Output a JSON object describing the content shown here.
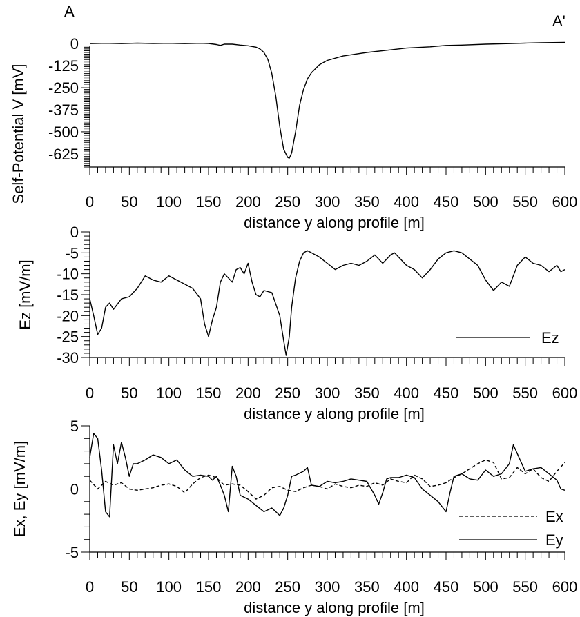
{
  "corner_labels": {
    "left": "A",
    "right": "A'"
  },
  "chart_data": [
    {
      "type": "line",
      "xlabel": "distance y along profile [m]",
      "ylabel": "Self-Potential V [mV]",
      "xlim": [
        0,
        600
      ],
      "ylim": [
        -700,
        40
      ],
      "xticks": [
        0,
        50,
        100,
        150,
        200,
        250,
        300,
        350,
        400,
        450,
        500,
        550,
        600
      ],
      "yticks": [
        0,
        -125,
        -250,
        -375,
        -500,
        -625
      ],
      "series": [
        {
          "style": "solid",
          "x": [
            0,
            20,
            40,
            60,
            80,
            100,
            120,
            140,
            150,
            160,
            165,
            170,
            180,
            190,
            200,
            210,
            215,
            220,
            225,
            230,
            235,
            240,
            245,
            250,
            252,
            255,
            260,
            265,
            270,
            275,
            280,
            290,
            300,
            320,
            350,
            380,
            400,
            430,
            450,
            470,
            500,
            530,
            550,
            570,
            600
          ],
          "y": [
            0,
            2,
            0,
            3,
            1,
            2,
            0,
            2,
            1,
            -5,
            -10,
            -3,
            -3,
            -8,
            -12,
            -20,
            -30,
            -50,
            -90,
            -170,
            -300,
            -470,
            -600,
            -645,
            -650,
            -620,
            -500,
            -350,
            -260,
            -200,
            -165,
            -120,
            -95,
            -70,
            -50,
            -35,
            -25,
            -18,
            -10,
            -8,
            -3,
            0,
            3,
            5,
            7
          ]
        }
      ]
    },
    {
      "type": "line",
      "xlabel": "distance y along profile [m]",
      "ylabel": "Ez [mV/m]",
      "xlim": [
        0,
        600
      ],
      "ylim": [
        -30,
        0
      ],
      "xticks": [
        0,
        50,
        100,
        150,
        200,
        250,
        300,
        350,
        400,
        450,
        500,
        550,
        600
      ],
      "yticks": [
        0,
        -5,
        -10,
        -15,
        -20,
        -25,
        -30
      ],
      "series": [
        {
          "name": "Ez",
          "style": "solid",
          "x": [
            0,
            5,
            10,
            15,
            20,
            25,
            30,
            40,
            50,
            60,
            70,
            80,
            90,
            100,
            110,
            120,
            130,
            140,
            145,
            150,
            155,
            160,
            165,
            170,
            175,
            180,
            185,
            190,
            195,
            200,
            205,
            210,
            215,
            220,
            230,
            240,
            245,
            248,
            252,
            255,
            260,
            265,
            270,
            275,
            280,
            290,
            300,
            310,
            320,
            330,
            340,
            350,
            360,
            370,
            380,
            385,
            390,
            400,
            410,
            420,
            430,
            440,
            450,
            460,
            470,
            480,
            490,
            500,
            510,
            520,
            530,
            540,
            550,
            560,
            570,
            580,
            590,
            595,
            600
          ],
          "y": [
            -16,
            -20,
            -24.5,
            -23,
            -18,
            -17,
            -18.5,
            -16,
            -15.5,
            -13.5,
            -10.5,
            -11.5,
            -12,
            -10.5,
            -11.5,
            -12.5,
            -13.5,
            -16,
            -22,
            -25,
            -21,
            -18,
            -12,
            -10,
            -11,
            -12,
            -9,
            -8.5,
            -10,
            -7.5,
            -12,
            -15,
            -15.5,
            -14,
            -14.5,
            -20,
            -26,
            -29.5,
            -25,
            -18,
            -11,
            -7,
            -5,
            -4.5,
            -5,
            -6,
            -7.5,
            -9,
            -8,
            -7.5,
            -8,
            -7,
            -5.5,
            -7.5,
            -5.5,
            -5,
            -6,
            -8,
            -9,
            -11,
            -9,
            -6.5,
            -5,
            -4.5,
            -5,
            -6.5,
            -8,
            -11.5,
            -14,
            -12,
            -13,
            -8,
            -6,
            -7.5,
            -8,
            -9.5,
            -8,
            -9.5,
            -9
          ]
        }
      ],
      "legend": {
        "position": "bottom-right",
        "entries": [
          "Ez"
        ]
      }
    },
    {
      "type": "line",
      "xlabel": "distance y along profile [m]",
      "ylabel": "Ex, Ey [mV/m]",
      "xlim": [
        0,
        600
      ],
      "ylim": [
        -5,
        5
      ],
      "xticks": [
        0,
        50,
        100,
        150,
        200,
        250,
        300,
        350,
        400,
        450,
        500,
        550,
        600
      ],
      "yticks": [
        5,
        0,
        -5
      ],
      "series": [
        {
          "name": "Ex",
          "style": "dashed",
          "x": [
            0,
            10,
            20,
            30,
            40,
            50,
            60,
            70,
            80,
            90,
            100,
            110,
            120,
            130,
            140,
            150,
            160,
            170,
            180,
            190,
            200,
            210,
            220,
            230,
            240,
            250,
            260,
            270,
            280,
            290,
            300,
            310,
            320,
            330,
            340,
            350,
            360,
            370,
            380,
            390,
            400,
            410,
            420,
            430,
            440,
            450,
            460,
            470,
            480,
            490,
            500,
            510,
            520,
            530,
            540,
            550,
            560,
            570,
            580,
            590,
            600
          ],
          "y": [
            0.7,
            0.0,
            0.6,
            0.3,
            0.5,
            0.0,
            -0.1,
            0.0,
            0.1,
            0.3,
            0.4,
            0.2,
            -0.3,
            0.4,
            0.9,
            1.1,
            0.9,
            0.3,
            0.4,
            0.3,
            -0.2,
            -0.8,
            -0.5,
            0.1,
            0.2,
            -0.1,
            -0.2,
            0.1,
            0.3,
            0.2,
            0.0,
            0.4,
            0.2,
            0.1,
            0.3,
            0.2,
            0.5,
            0.3,
            0.8,
            0.6,
            0.5,
            1.1,
            0.8,
            0.2,
            0.3,
            0.5,
            0.9,
            1.2,
            1.6,
            2.0,
            2.3,
            2.1,
            0.8,
            0.9,
            1.7,
            1.2,
            1.6,
            0.9,
            0.6,
            1.4,
            2.1
          ]
        },
        {
          "name": "Ey",
          "style": "solid",
          "x": [
            0,
            5,
            10,
            15,
            20,
            25,
            30,
            35,
            40,
            45,
            50,
            55,
            60,
            70,
            80,
            90,
            100,
            110,
            120,
            130,
            140,
            150,
            155,
            160,
            165,
            170,
            175,
            180,
            185,
            190,
            200,
            210,
            220,
            230,
            240,
            245,
            250,
            255,
            260,
            270,
            275,
            280,
            290,
            300,
            310,
            320,
            330,
            340,
            350,
            360,
            365,
            370,
            375,
            380,
            390,
            400,
            410,
            420,
            430,
            440,
            450,
            455,
            460,
            470,
            480,
            490,
            500,
            510,
            520,
            530,
            535,
            540,
            550,
            560,
            570,
            580,
            590,
            595,
            600
          ],
          "y": [
            2.5,
            4.4,
            4.0,
            1.5,
            -1.8,
            -2.2,
            3.5,
            2.0,
            3.7,
            2.5,
            1.0,
            2.0,
            2.0,
            2.3,
            2.7,
            2.5,
            2.0,
            2.3,
            1.5,
            1.0,
            1.1,
            1.0,
            0.7,
            1.0,
            0.3,
            -0.5,
            -1.8,
            1.8,
            1.0,
            -0.5,
            -0.8,
            -1.3,
            -1.8,
            -1.5,
            -2.1,
            -1.5,
            -0.5,
            1.0,
            1.1,
            1.4,
            1.7,
            0.3,
            0.2,
            0.6,
            0.5,
            0.6,
            0.8,
            0.7,
            0.6,
            -0.5,
            -1.2,
            -0.3,
            0.8,
            0.9,
            0.9,
            1.1,
            0.9,
            0.0,
            -0.5,
            -1.0,
            -1.8,
            -0.3,
            1.0,
            1.2,
            0.8,
            0.7,
            1.5,
            1.0,
            1.2,
            2.0,
            3.5,
            2.8,
            1.4,
            1.6,
            1.7,
            1.2,
            0.7,
            0.0,
            -0.1
          ]
        }
      ],
      "legend": {
        "position": "bottom-right",
        "entries": [
          "Ex",
          "Ey"
        ]
      }
    }
  ]
}
